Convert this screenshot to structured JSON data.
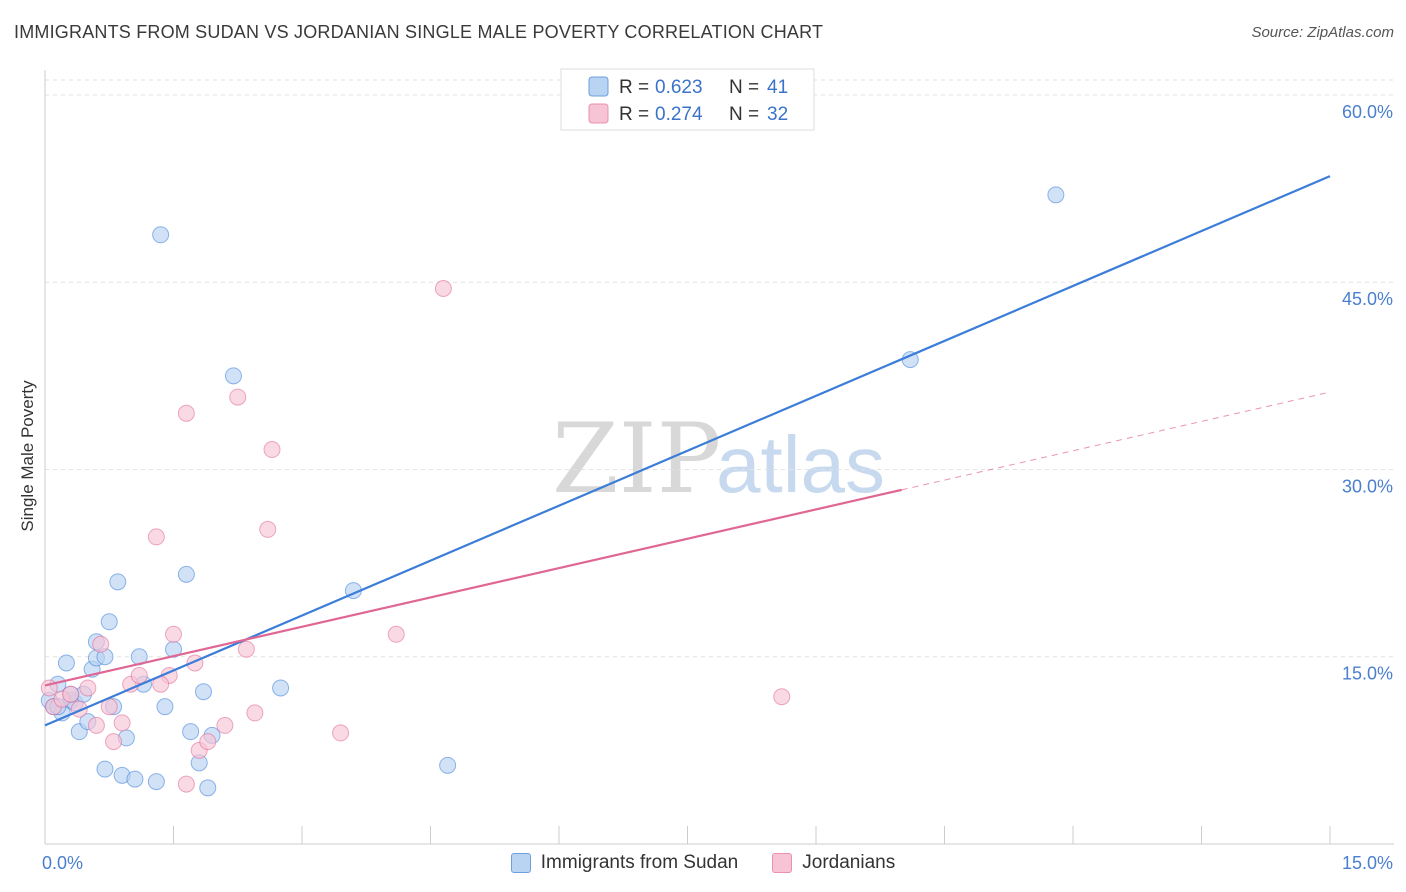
{
  "chart_data": {
    "type": "scatter",
    "title": "IMMIGRANTS FROM SUDAN VS JORDANIAN SINGLE MALE POVERTY CORRELATION CHART",
    "source": "Source: ZipAtlas.com",
    "xlabel": "",
    "ylabel": "Single Male Poverty",
    "xlim": [
      0,
      15
    ],
    "ylim": [
      0,
      62
    ],
    "x_tick_labels": [
      "0.0%",
      "15.0%"
    ],
    "y_ticks": [
      15,
      30,
      45,
      60
    ],
    "y_tick_labels": [
      "15.0%",
      "30.0%",
      "45.0%",
      "60.0%"
    ],
    "watermark": {
      "zip": "ZIP",
      "atlas": "atlas"
    },
    "legend": {
      "r_label": "R =",
      "n_label": "N =",
      "entries": [
        {
          "r": "0.623",
          "n": "41"
        },
        {
          "r": "0.274",
          "n": "32"
        }
      ]
    },
    "series": [
      {
        "name": "Immigrants from Sudan",
        "color": "#3b7dd8",
        "fill": "#b9d3f3",
        "trend": {
          "x0": 0,
          "y0": 9.5,
          "x1": 15,
          "y1": 53.5,
          "dash_from": null
        },
        "points": [
          [
            0.05,
            11.5
          ],
          [
            0.1,
            11
          ],
          [
            0.15,
            12.8
          ],
          [
            0.2,
            10.5
          ],
          [
            0.25,
            14.5
          ],
          [
            0.3,
            11.5
          ],
          [
            0.35,
            11.3
          ],
          [
            0.4,
            9
          ],
          [
            0.45,
            12
          ],
          [
            0.5,
            9.8
          ],
          [
            0.55,
            14
          ],
          [
            0.6,
            16.2
          ],
          [
            0.7,
            6
          ],
          [
            0.75,
            17.8
          ],
          [
            0.8,
            11
          ],
          [
            0.85,
            21
          ],
          [
            0.9,
            5.5
          ],
          [
            0.95,
            8.5
          ],
          [
            1.05,
            5.2
          ],
          [
            1.1,
            15
          ],
          [
            1.15,
            12.8
          ],
          [
            1.3,
            5
          ],
          [
            1.35,
            48.8
          ],
          [
            1.4,
            11
          ],
          [
            1.5,
            15.6
          ],
          [
            1.65,
            21.6
          ],
          [
            1.7,
            9
          ],
          [
            1.8,
            6.5
          ],
          [
            1.85,
            12.2
          ],
          [
            1.9,
            4.5
          ],
          [
            1.95,
            8.7
          ],
          [
            2.2,
            37.5
          ],
          [
            2.75,
            12.5
          ],
          [
            3.6,
            20.3
          ],
          [
            4.7,
            6.3
          ],
          [
            10.1,
            38.8
          ],
          [
            11.8,
            52
          ],
          [
            0.6,
            14.9
          ],
          [
            0.3,
            12
          ],
          [
            0.15,
            11
          ],
          [
            0.7,
            15
          ]
        ]
      },
      {
        "name": "Jordanians",
        "color": "#e06694",
        "fill": "#f6c4d5",
        "trend": {
          "x0": 0,
          "y0": 12.7,
          "x1": 15,
          "y1": 36.2,
          "dash_from": 10.0
        },
        "points": [
          [
            0.05,
            12.5
          ],
          [
            0.1,
            11
          ],
          [
            0.2,
            11.6
          ],
          [
            0.3,
            12
          ],
          [
            0.4,
            10.8
          ],
          [
            0.5,
            12.5
          ],
          [
            0.6,
            9.5
          ],
          [
            0.65,
            16
          ],
          [
            0.75,
            11
          ],
          [
            0.8,
            8.2
          ],
          [
            0.9,
            9.7
          ],
          [
            1.0,
            12.8
          ],
          [
            1.1,
            13.5
          ],
          [
            1.3,
            24.6
          ],
          [
            1.45,
            13.5
          ],
          [
            1.5,
            16.8
          ],
          [
            1.65,
            34.5
          ],
          [
            1.75,
            14.5
          ],
          [
            1.8,
            7.5
          ],
          [
            1.9,
            8.2
          ],
          [
            2.1,
            9.5
          ],
          [
            2.25,
            35.8
          ],
          [
            2.35,
            15.6
          ],
          [
            2.45,
            10.5
          ],
          [
            2.6,
            25.2
          ],
          [
            2.65,
            31.6
          ],
          [
            3.45,
            8.9
          ],
          [
            4.1,
            16.8
          ],
          [
            4.65,
            44.5
          ],
          [
            8.6,
            11.8
          ],
          [
            1.65,
            4.8
          ],
          [
            1.35,
            12.8
          ]
        ]
      }
    ]
  }
}
